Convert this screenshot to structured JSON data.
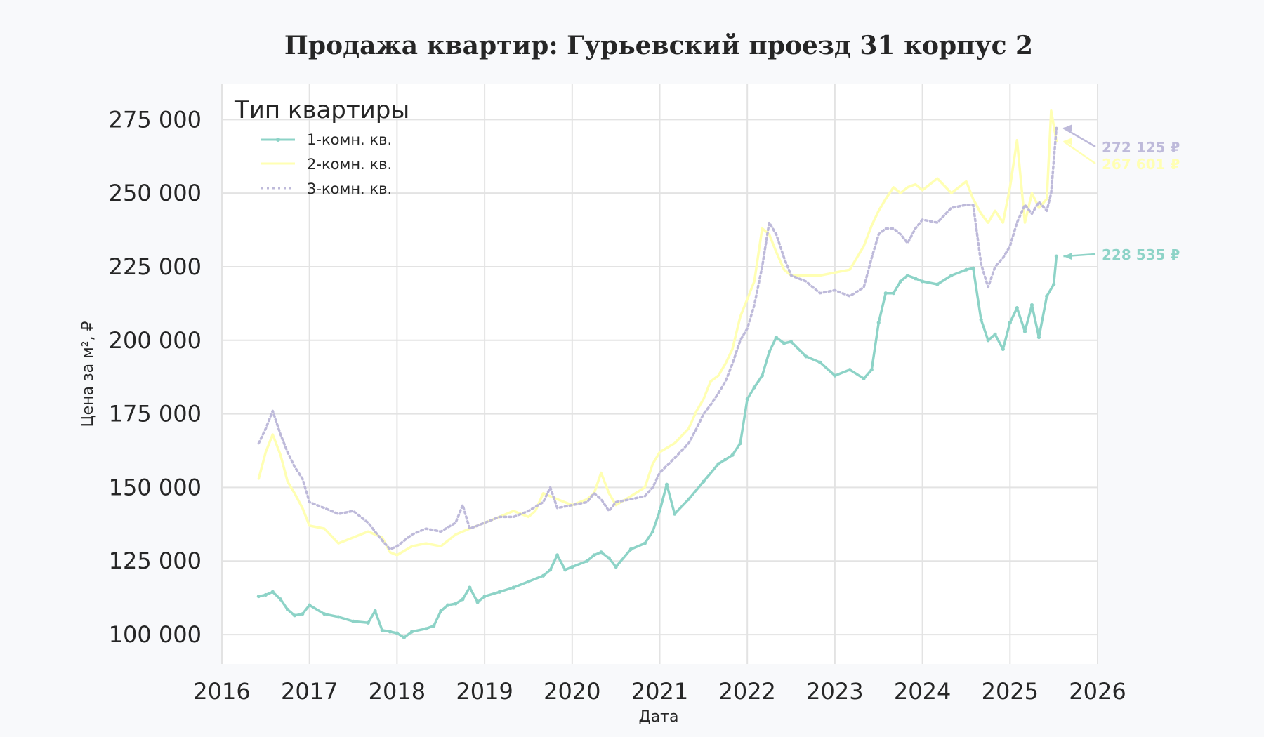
{
  "chart_data": {
    "type": "line",
    "title": "Продажа квартир: Гурьевский проезд 31 корпус 2",
    "xlabel": "Дата",
    "ylabel": "Цена за м², ₽",
    "xlim": [
      2016,
      2026
    ],
    "ylim": [
      90000,
      287000
    ],
    "x_ticks": [
      "2016",
      "2017",
      "2018",
      "2019",
      "2020",
      "2021",
      "2022",
      "2023",
      "2024",
      "2025",
      "2026"
    ],
    "y_ticks": [
      "100 000",
      "125 000",
      "150 000",
      "175 000",
      "200 000",
      "225 000",
      "250 000",
      "275 000"
    ],
    "y_tick_values": [
      100000,
      125000,
      150000,
      175000,
      200000,
      225000,
      250000,
      275000
    ],
    "grid": true,
    "legend": {
      "title": "Тип квартиры",
      "position": "top-left",
      "entries": [
        "1-комн. кв.",
        "2-комн. кв.",
        "3-комн. кв."
      ]
    },
    "series": [
      {
        "name": "1-комн. кв.",
        "color": "#8dd3c7",
        "style": "solid-markers",
        "last_label": "228 535 ₽",
        "x": [
          2016.42,
          2016.5,
          2016.58,
          2016.67,
          2016.75,
          2016.83,
          2016.92,
          2017.0,
          2017.17,
          2017.33,
          2017.5,
          2017.67,
          2017.75,
          2017.83,
          2017.92,
          2018.0,
          2018.08,
          2018.17,
          2018.33,
          2018.42,
          2018.5,
          2018.58,
          2018.67,
          2018.75,
          2018.83,
          2018.92,
          2019.0,
          2019.17,
          2019.33,
          2019.5,
          2019.67,
          2019.75,
          2019.83,
          2019.92,
          2020.0,
          2020.17,
          2020.25,
          2020.33,
          2020.42,
          2020.5,
          2020.67,
          2020.83,
          2020.92,
          2021.0,
          2021.08,
          2021.17,
          2021.33,
          2021.5,
          2021.67,
          2021.75,
          2021.83,
          2021.92,
          2022.0,
          2022.08,
          2022.17,
          2022.25,
          2022.33,
          2022.42,
          2022.5,
          2022.67,
          2022.83,
          2023.0,
          2023.17,
          2023.33,
          2023.42,
          2023.5,
          2023.58,
          2023.67,
          2023.75,
          2023.83,
          2023.92,
          2024.0,
          2024.17,
          2024.33,
          2024.5,
          2024.58,
          2024.67,
          2024.75,
          2024.83,
          2024.92,
          2025.0,
          2025.08,
          2025.17,
          2025.25,
          2025.33,
          2025.42,
          2025.5,
          2025.53
        ],
        "values": [
          113000,
          113500,
          114500,
          112000,
          108500,
          106500,
          107000,
          110000,
          107000,
          106000,
          104500,
          104000,
          108000,
          101500,
          101000,
          100500,
          99000,
          101000,
          102000,
          103000,
          108000,
          110000,
          110500,
          112000,
          116000,
          111000,
          113000,
          114500,
          116000,
          118000,
          120000,
          122000,
          127000,
          122000,
          123000,
          125000,
          127000,
          128000,
          126000,
          123000,
          129000,
          131000,
          135000,
          142000,
          151000,
          141000,
          146000,
          152000,
          158000,
          159500,
          161000,
          165000,
          180000,
          184000,
          188000,
          196000,
          201000,
          199000,
          199500,
          194500,
          192500,
          188000,
          190000,
          187000,
          190000,
          206000,
          216000,
          216000,
          220000,
          222000,
          221000,
          220000,
          219000,
          222000,
          224000,
          224500,
          207000,
          200000,
          202000,
          197000,
          206000,
          211000,
          203000,
          212000,
          201000,
          215000,
          219000,
          228535
        ]
      },
      {
        "name": "2-комн. кв.",
        "color": "#ffffb3",
        "style": "solid",
        "last_label": "267 601 ₽",
        "x": [
          2016.42,
          2016.5,
          2016.58,
          2016.67,
          2016.75,
          2016.83,
          2016.92,
          2017.0,
          2017.17,
          2017.33,
          2017.5,
          2017.67,
          2017.83,
          2017.92,
          2018.0,
          2018.17,
          2018.33,
          2018.5,
          2018.67,
          2018.83,
          2019.0,
          2019.17,
          2019.33,
          2019.5,
          2019.58,
          2019.67,
          2019.83,
          2020.0,
          2020.17,
          2020.25,
          2020.33,
          2020.42,
          2020.5,
          2020.67,
          2020.83,
          2020.92,
          2021.0,
          2021.17,
          2021.33,
          2021.42,
          2021.5,
          2021.58,
          2021.67,
          2021.75,
          2021.83,
          2021.92,
          2022.0,
          2022.08,
          2022.17,
          2022.25,
          2022.33,
          2022.42,
          2022.5,
          2022.67,
          2022.83,
          2023.0,
          2023.17,
          2023.33,
          2023.42,
          2023.5,
          2023.58,
          2023.67,
          2023.75,
          2023.83,
          2023.92,
          2024.0,
          2024.17,
          2024.33,
          2024.5,
          2024.58,
          2024.67,
          2024.75,
          2024.83,
          2024.92,
          2025.0,
          2025.08,
          2025.17,
          2025.25,
          2025.33,
          2025.42,
          2025.47,
          2025.53
        ],
        "values": [
          153000,
          162000,
          168000,
          161000,
          152000,
          148000,
          143000,
          137000,
          136000,
          131000,
          133000,
          135000,
          133000,
          128000,
          127000,
          130000,
          131000,
          130000,
          134000,
          136000,
          138000,
          140000,
          142000,
          140000,
          142000,
          148000,
          146000,
          144000,
          146000,
          148000,
          155000,
          148000,
          144000,
          147000,
          150000,
          158000,
          162000,
          165000,
          170000,
          176000,
          180000,
          186000,
          188000,
          192000,
          197000,
          208000,
          214000,
          220000,
          238000,
          236000,
          230000,
          224000,
          222000,
          222000,
          222000,
          223000,
          224000,
          232000,
          239000,
          244000,
          248000,
          252000,
          250000,
          252000,
          253000,
          251000,
          255000,
          250000,
          254000,
          248000,
          243000,
          240000,
          244000,
          240000,
          252000,
          268000,
          240000,
          250000,
          245000,
          248000,
          278000,
          267601
        ]
      },
      {
        "name": "3-комн. кв.",
        "color": "#bebada",
        "style": "dotted",
        "last_label": "272 125 ₽",
        "x": [
          2016.42,
          2016.5,
          2016.58,
          2016.67,
          2016.75,
          2016.83,
          2016.92,
          2017.0,
          2017.17,
          2017.33,
          2017.5,
          2017.67,
          2017.83,
          2017.92,
          2018.0,
          2018.17,
          2018.33,
          2018.5,
          2018.67,
          2018.75,
          2018.83,
          2018.92,
          2019.0,
          2019.17,
          2019.33,
          2019.5,
          2019.67,
          2019.75,
          2019.83,
          2020.0,
          2020.17,
          2020.25,
          2020.33,
          2020.42,
          2020.5,
          2020.67,
          2020.83,
          2020.92,
          2021.0,
          2021.17,
          2021.33,
          2021.42,
          2021.5,
          2021.58,
          2021.67,
          2021.75,
          2021.83,
          2021.92,
          2022.0,
          2022.08,
          2022.17,
          2022.25,
          2022.33,
          2022.42,
          2022.5,
          2022.67,
          2022.83,
          2023.0,
          2023.17,
          2023.33,
          2023.42,
          2023.5,
          2023.58,
          2023.67,
          2023.75,
          2023.83,
          2023.92,
          2024.0,
          2024.17,
          2024.33,
          2024.5,
          2024.58,
          2024.67,
          2024.75,
          2024.83,
          2024.92,
          2025.0,
          2025.08,
          2025.17,
          2025.25,
          2025.33,
          2025.42,
          2025.47,
          2025.53
        ],
        "values": [
          165000,
          170000,
          176000,
          168000,
          162000,
          157000,
          153000,
          145000,
          143000,
          141000,
          142000,
          138000,
          132000,
          129000,
          130000,
          134000,
          136000,
          135000,
          138000,
          144000,
          136000,
          137000,
          138000,
          140000,
          140000,
          142000,
          145000,
          150000,
          143000,
          144000,
          145000,
          148000,
          146000,
          142000,
          145000,
          146000,
          147000,
          150000,
          155000,
          160000,
          165000,
          170000,
          175000,
          178000,
          182000,
          186000,
          192000,
          200000,
          204000,
          212000,
          225000,
          240000,
          236000,
          228000,
          222000,
          220000,
          216000,
          217000,
          215000,
          218000,
          228000,
          236000,
          238000,
          238000,
          236000,
          233000,
          238000,
          241000,
          240000,
          245000,
          246000,
          246000,
          226000,
          218000,
          225000,
          228000,
          232000,
          240000,
          246000,
          243000,
          247000,
          244000,
          250000,
          272125
        ]
      }
    ]
  }
}
